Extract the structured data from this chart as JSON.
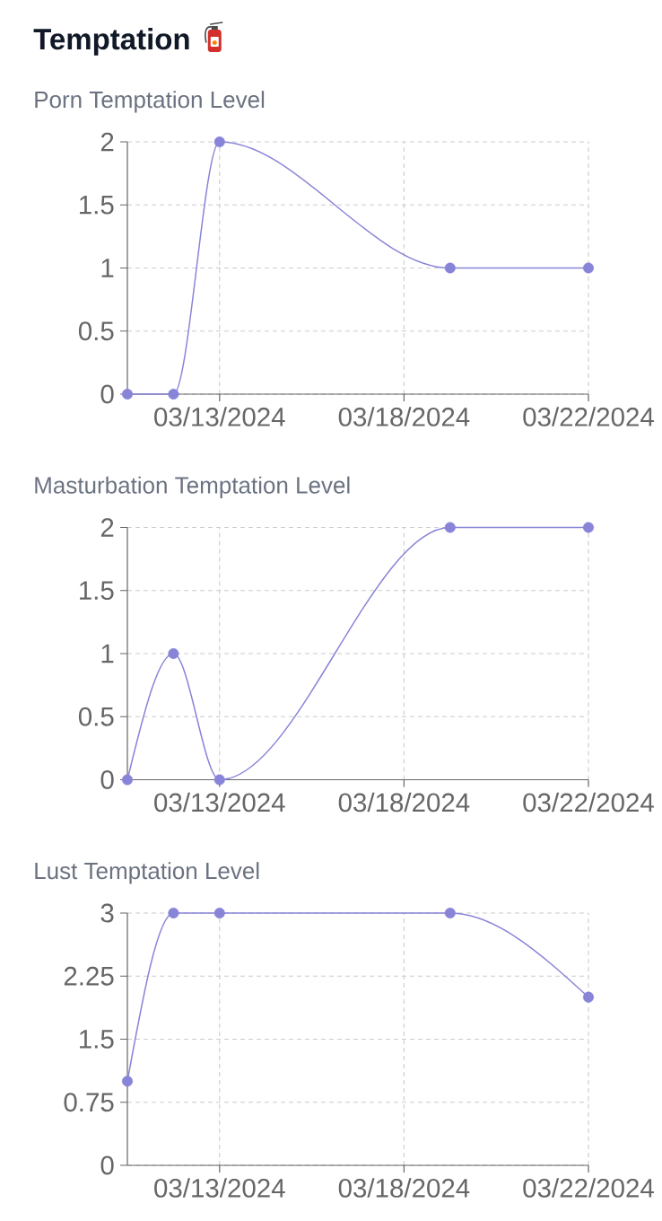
{
  "chart_data": [
    {
      "type": "line",
      "title": "Temptation",
      "subtitle": "Porn Temptation Level",
      "categories": [
        null,
        null,
        "03/13/2024",
        null,
        null,
        null,
        "03/18/2024",
        null,
        null,
        null,
        "03/22/2024"
      ],
      "values": [
        0,
        0,
        2,
        null,
        null,
        null,
        null,
        1,
        null,
        null,
        1
      ],
      "color": "#8884d8",
      "ylim": [
        0,
        2
      ],
      "yticks": [
        0,
        0.5,
        1,
        1.5,
        2
      ],
      "grid": true,
      "marker": "circle"
    },
    {
      "type": "line",
      "title": "Masturbation Temptation Level",
      "categories": [
        null,
        null,
        "03/13/2024",
        null,
        null,
        null,
        "03/18/2024",
        null,
        null,
        null,
        "03/22/2024"
      ],
      "values": [
        0,
        1,
        0,
        null,
        null,
        null,
        null,
        2,
        null,
        null,
        2
      ],
      "color": "#8884d8",
      "ylim": [
        0,
        2
      ],
      "yticks": [
        0,
        0.5,
        1,
        1.5,
        2
      ],
      "grid": true,
      "marker": "circle"
    },
    {
      "type": "line",
      "title": "Lust Temptation Level",
      "categories": [
        null,
        null,
        "03/13/2024",
        null,
        null,
        null,
        "03/18/2024",
        null,
        null,
        null,
        "03/22/2024"
      ],
      "values": [
        1,
        3,
        3,
        null,
        null,
        null,
        null,
        3,
        null,
        null,
        2
      ],
      "color": "#8884d8",
      "ylim": [
        0,
        3
      ],
      "yticks": [
        0,
        0.75,
        1.5,
        2.25,
        3
      ],
      "grid": true,
      "marker": "circle"
    }
  ]
}
